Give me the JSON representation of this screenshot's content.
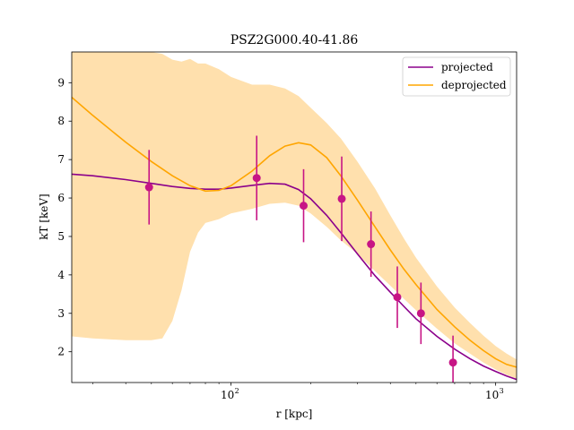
{
  "chart_data": {
    "type": "line",
    "title": "PSZ2G000.40-41.86",
    "xlabel": "r [kpc]",
    "ylabel": "kT [keV]",
    "xscale": "log",
    "xlim": [
      25,
      1200
    ],
    "ylim": [
      1.2,
      9.8
    ],
    "grid": false,
    "legend_position": "top-right",
    "x_ticks": [
      {
        "value": 100,
        "label": "10",
        "exp": "2"
      },
      {
        "value": 1000,
        "label": "10",
        "exp": "3"
      }
    ],
    "y_ticks": [
      2,
      3,
      4,
      5,
      6,
      7,
      8,
      9
    ],
    "colors": {
      "projected": "#8b008b",
      "deprojected": "#ffa500",
      "band": "#ffe0ad",
      "points": "#c71585"
    },
    "series": [
      {
        "name": "projected",
        "color": "#8b008b",
        "x": [
          25,
          30,
          40,
          50,
          60,
          70,
          80,
          90,
          100,
          120,
          140,
          160,
          180,
          200,
          230,
          260,
          300,
          350,
          400,
          450,
          500,
          600,
          700,
          800,
          900,
          1000,
          1100,
          1200
        ],
        "y": [
          6.62,
          6.58,
          6.48,
          6.38,
          6.3,
          6.25,
          6.23,
          6.23,
          6.26,
          6.33,
          6.38,
          6.36,
          6.22,
          5.98,
          5.55,
          5.1,
          4.55,
          3.98,
          3.55,
          3.18,
          2.86,
          2.4,
          2.07,
          1.82,
          1.63,
          1.49,
          1.37,
          1.28
        ]
      },
      {
        "name": "deprojected",
        "color": "#ffa500",
        "x": [
          25,
          30,
          40,
          50,
          60,
          70,
          80,
          90,
          100,
          120,
          140,
          160,
          180,
          200,
          230,
          260,
          300,
          350,
          400,
          450,
          500,
          600,
          700,
          800,
          900,
          1000,
          1100,
          1200
        ],
        "y": [
          8.62,
          8.15,
          7.45,
          6.95,
          6.58,
          6.32,
          6.18,
          6.2,
          6.32,
          6.7,
          7.1,
          7.35,
          7.44,
          7.38,
          7.05,
          6.58,
          5.95,
          5.25,
          4.65,
          4.15,
          3.75,
          3.1,
          2.65,
          2.3,
          2.03,
          1.82,
          1.67,
          1.6
        ]
      }
    ],
    "band": {
      "x": [
        25,
        30,
        40,
        50,
        55,
        60,
        65,
        70,
        75,
        80,
        90,
        100,
        120,
        140,
        160,
        180,
        200,
        230,
        260,
        300,
        350,
        400,
        450,
        500,
        600,
        700,
        800,
        900,
        1000,
        1100,
        1200
      ],
      "upper": [
        9.8,
        9.8,
        9.8,
        9.8,
        9.75,
        9.6,
        9.55,
        9.62,
        9.5,
        9.5,
        9.35,
        9.15,
        8.95,
        8.95,
        8.85,
        8.65,
        8.35,
        7.95,
        7.55,
        6.95,
        6.25,
        5.55,
        4.95,
        4.45,
        3.7,
        3.15,
        2.75,
        2.42,
        2.15,
        1.95,
        1.8
      ],
      "lower": [
        2.4,
        2.35,
        2.3,
        2.3,
        2.35,
        2.8,
        3.6,
        4.6,
        5.1,
        5.35,
        5.45,
        5.6,
        5.72,
        5.85,
        5.88,
        5.8,
        5.6,
        5.25,
        4.9,
        4.55,
        4.1,
        3.72,
        3.38,
        3.08,
        2.6,
        2.22,
        1.95,
        1.72,
        1.54,
        1.4,
        1.3
      ]
    },
    "points": {
      "color": "#c71585",
      "x": [
        49,
        125,
        188,
        262,
        338,
        425,
        522,
        690
      ],
      "y": [
        6.28,
        6.52,
        5.8,
        5.98,
        4.8,
        3.42,
        3.0,
        1.72
      ],
      "yerr": [
        0.97,
        1.1,
        0.95,
        1.1,
        0.85,
        0.8,
        0.8,
        0.7
      ]
    }
  }
}
